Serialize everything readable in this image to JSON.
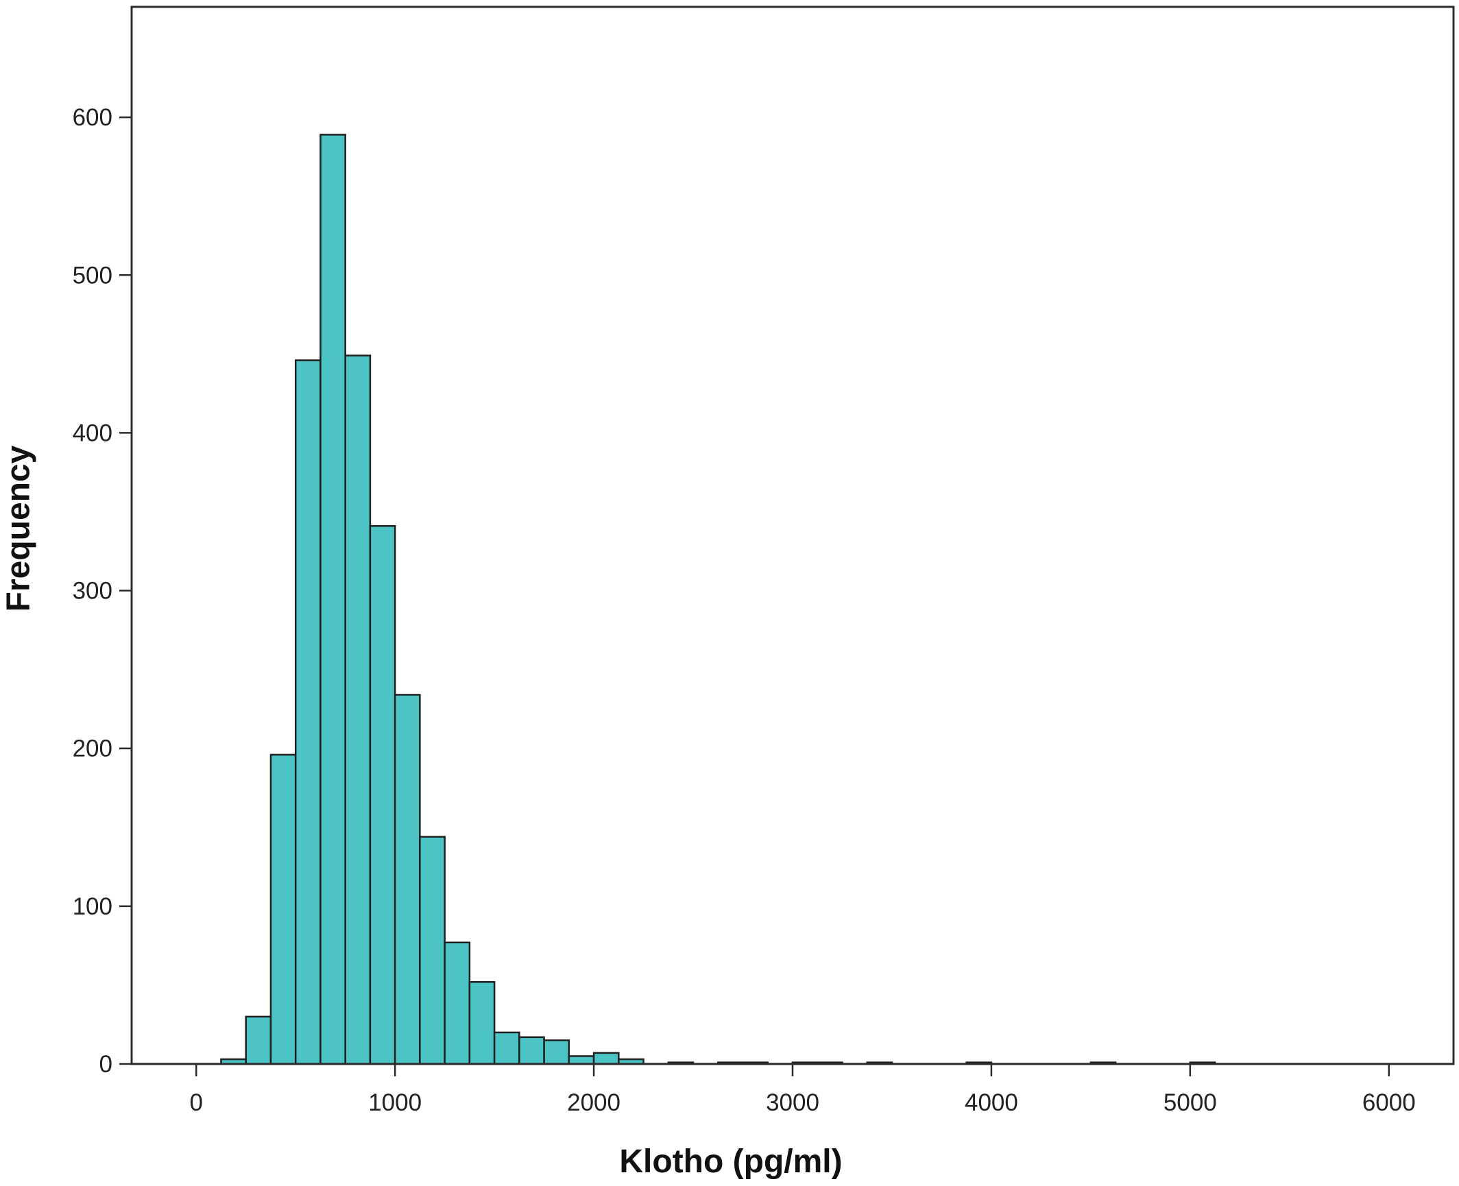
{
  "chart_data": {
    "type": "bar",
    "xlabel": "Klotho (pg/ml)",
    "ylabel": "Frequency",
    "bar_color": "#4cc4c6",
    "grid": false,
    "legend": "none",
    "xlim": [
      -325,
      6325
    ],
    "ylim": [
      0,
      670
    ],
    "xticks": [
      0,
      1000,
      2000,
      3000,
      4000,
      5000,
      6000
    ],
    "yticks": [
      0,
      100,
      200,
      300,
      400,
      500,
      600
    ],
    "bins": [
      {
        "x0": 125,
        "x1": 250,
        "count": 3
      },
      {
        "x0": 250,
        "x1": 375,
        "count": 30
      },
      {
        "x0": 375,
        "x1": 500,
        "count": 196
      },
      {
        "x0": 500,
        "x1": 625,
        "count": 446
      },
      {
        "x0": 625,
        "x1": 750,
        "count": 589
      },
      {
        "x0": 750,
        "x1": 875,
        "count": 449
      },
      {
        "x0": 875,
        "x1": 1000,
        "count": 341
      },
      {
        "x0": 1000,
        "x1": 1125,
        "count": 234
      },
      {
        "x0": 1125,
        "x1": 1250,
        "count": 144
      },
      {
        "x0": 1250,
        "x1": 1375,
        "count": 77
      },
      {
        "x0": 1375,
        "x1": 1500,
        "count": 52
      },
      {
        "x0": 1500,
        "x1": 1625,
        "count": 20
      },
      {
        "x0": 1625,
        "x1": 1750,
        "count": 17
      },
      {
        "x0": 1750,
        "x1": 1875,
        "count": 15
      },
      {
        "x0": 1875,
        "x1": 2000,
        "count": 5
      },
      {
        "x0": 2000,
        "x1": 2125,
        "count": 7
      },
      {
        "x0": 2125,
        "x1": 2250,
        "count": 3
      },
      {
        "x0": 2375,
        "x1": 2500,
        "count": 1
      },
      {
        "x0": 2625,
        "x1": 2750,
        "count": 1
      },
      {
        "x0": 2750,
        "x1": 2875,
        "count": 1
      },
      {
        "x0": 3000,
        "x1": 3125,
        "count": 1
      },
      {
        "x0": 3125,
        "x1": 3250,
        "count": 1
      },
      {
        "x0": 3375,
        "x1": 3500,
        "count": 1
      },
      {
        "x0": 3875,
        "x1": 4000,
        "count": 1
      },
      {
        "x0": 4500,
        "x1": 4625,
        "count": 1
      },
      {
        "x0": 5000,
        "x1": 5125,
        "count": 1
      }
    ]
  }
}
